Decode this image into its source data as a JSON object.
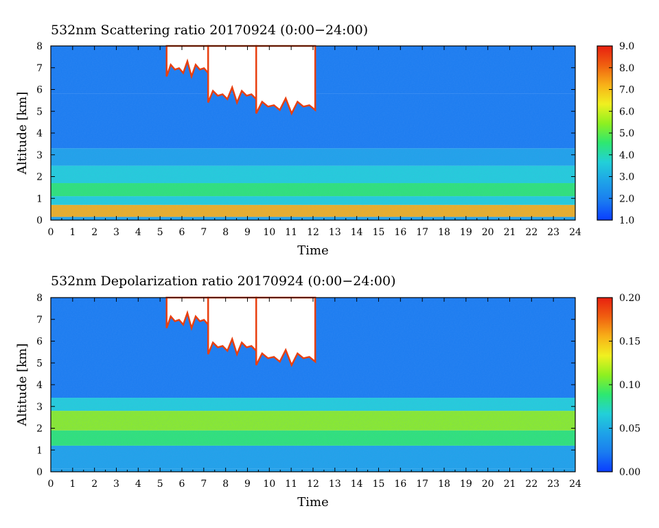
{
  "chart_data": [
    {
      "type": "heatmap",
      "title": "532nm Scattering ratio  20170924 (0:00−24:00)",
      "xlabel": "Time",
      "ylabel": "Altitude [km]",
      "xlim": [
        0,
        24
      ],
      "ylim": [
        0,
        8
      ],
      "x_ticks": [
        "0",
        "1",
        "2",
        "3",
        "4",
        "5",
        "6",
        "7",
        "8",
        "9",
        "10",
        "11",
        "12",
        "13",
        "14",
        "15",
        "16",
        "17",
        "18",
        "19",
        "20",
        "21",
        "22",
        "23",
        "24"
      ],
      "y_ticks": [
        "0",
        "1",
        "2",
        "3",
        "4",
        "5",
        "6",
        "7",
        "8"
      ],
      "colorbar": {
        "range": [
          1.0,
          9.0
        ],
        "ticks": [
          "1.0",
          "2.0",
          "3.0",
          "4.0",
          "5.0",
          "6.0",
          "7.0",
          "8.0",
          "9.0"
        ],
        "colors": [
          "#0a3dff",
          "#1a7cf0",
          "#1ea3e8",
          "#22d0d8",
          "#2ee870",
          "#8ef020",
          "#f0f020",
          "#f8b018",
          "#f06010",
          "#e82010"
        ]
      },
      "layers": [
        {
          "bottom": 0.0,
          "top": 0.15,
          "value": 3.0
        },
        {
          "bottom": 0.15,
          "top": 0.7,
          "value": 6.8
        },
        {
          "bottom": 0.7,
          "top": 1.1,
          "value": 3.6
        },
        {
          "bottom": 1.1,
          "top": 1.7,
          "value": 4.7
        },
        {
          "bottom": 1.7,
          "top": 2.5,
          "value": 4.0
        },
        {
          "bottom": 2.5,
          "top": 3.3,
          "value": 2.8
        },
        {
          "bottom": 3.3,
          "top": 5.8,
          "value": 1.8
        },
        {
          "bottom": 5.8,
          "top": 8.0,
          "value": 2.1
        }
      ],
      "clouds": [
        {
          "t0": 5.3,
          "t1": 7.2,
          "base": 6.6,
          "top": 8.0
        },
        {
          "t0": 7.2,
          "t1": 9.4,
          "base": 5.4,
          "top": 8.0
        },
        {
          "t0": 9.4,
          "t1": 12.1,
          "base": 4.9,
          "top": 8.0
        }
      ]
    },
    {
      "type": "heatmap",
      "title": "532nm Depolarization ratio  20170924 (0:00−24:00)",
      "xlabel": "Time",
      "ylabel": "Altitude [km]",
      "xlim": [
        0,
        24
      ],
      "ylim": [
        0,
        8
      ],
      "x_ticks": [
        "0",
        "1",
        "2",
        "3",
        "4",
        "5",
        "6",
        "7",
        "8",
        "9",
        "10",
        "11",
        "12",
        "13",
        "14",
        "15",
        "16",
        "17",
        "18",
        "19",
        "20",
        "21",
        "22",
        "23",
        "24"
      ],
      "y_ticks": [
        "0",
        "1",
        "2",
        "3",
        "4",
        "5",
        "6",
        "7",
        "8"
      ],
      "colorbar": {
        "range": [
          0.0,
          0.2
        ],
        "ticks": [
          "0.00",
          "0.05",
          "0.10",
          "0.15",
          "0.20"
        ],
        "colors": [
          "#0a3dff",
          "#1a7cf0",
          "#1ea3e8",
          "#22d0d8",
          "#2ee870",
          "#8ef020",
          "#f0f020",
          "#f8b018",
          "#f06010",
          "#e82010"
        ]
      },
      "layers": [
        {
          "bottom": 0.0,
          "top": 0.15,
          "value": 0.04
        },
        {
          "bottom": 0.15,
          "top": 1.2,
          "value": 0.045
        },
        {
          "bottom": 1.2,
          "top": 1.9,
          "value": 0.085
        },
        {
          "bottom": 1.9,
          "top": 2.8,
          "value": 0.105
        },
        {
          "bottom": 2.8,
          "top": 3.4,
          "value": 0.075
        },
        {
          "bottom": 3.4,
          "top": 8.0,
          "value": 0.03
        }
      ],
      "clouds": [
        {
          "t0": 5.3,
          "t1": 7.2,
          "base": 6.6,
          "top": 8.0
        },
        {
          "t0": 7.2,
          "t1": 9.4,
          "base": 5.4,
          "top": 8.0
        },
        {
          "t0": 9.4,
          "t1": 12.1,
          "base": 4.9,
          "top": 8.0
        }
      ]
    }
  ]
}
